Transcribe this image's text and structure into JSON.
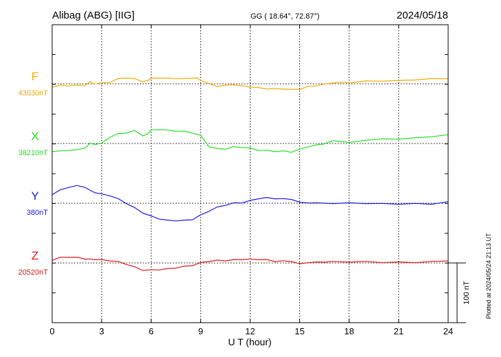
{
  "header": {
    "station": "Alibag (ABG)  [IIG]",
    "coords": "GG ( 18.64°,  72.87°)",
    "date": "2024/05/18"
  },
  "side_note": "Plotted at 2024/05/24 21:13 UT",
  "chart_data": {
    "type": "line",
    "xlabel": "U T (hour)",
    "xlim": [
      0,
      24
    ],
    "x_ticks": [
      "0",
      "3",
      "6",
      "9",
      "12",
      "15",
      "18",
      "21",
      "24"
    ],
    "scale_bar": {
      "label": "100 nT",
      "value_nT": 100
    },
    "unit": "nT",
    "series": [
      {
        "name": "F",
        "baseline_label": "43030nT",
        "baseline": 43030,
        "color": "#f2a900",
        "points": [
          [
            0,
            43025
          ],
          [
            0.5,
            43027
          ],
          [
            1,
            43027
          ],
          [
            1.5,
            43027
          ],
          [
            2,
            43028
          ],
          [
            2.3,
            43033
          ],
          [
            2.6,
            43030
          ],
          [
            3,
            43031
          ],
          [
            3.5,
            43033
          ],
          [
            4,
            43038
          ],
          [
            4.5,
            43040
          ],
          [
            5,
            43038
          ],
          [
            5.3,
            43036
          ],
          [
            5.5,
            43033
          ],
          [
            5.8,
            43036
          ],
          [
            6,
            43039
          ],
          [
            6.5,
            43040
          ],
          [
            7,
            43039
          ],
          [
            7.5,
            43039
          ],
          [
            8,
            43038
          ],
          [
            8.5,
            43040
          ],
          [
            8.8,
            43039
          ],
          [
            9,
            43036
          ],
          [
            9.5,
            43030
          ],
          [
            10,
            43026
          ],
          [
            10.5,
            43027
          ],
          [
            11,
            43029
          ],
          [
            11.5,
            43026
          ],
          [
            12,
            43025
          ],
          [
            12.5,
            43023
          ],
          [
            13,
            43022
          ],
          [
            13.5,
            43021
          ],
          [
            14,
            43022
          ],
          [
            14.5,
            43020
          ],
          [
            15,
            43021
          ],
          [
            15.5,
            43025
          ],
          [
            16,
            43027
          ],
          [
            16.5,
            43029
          ],
          [
            17,
            43032
          ],
          [
            17.5,
            43032
          ],
          [
            18,
            43032
          ],
          [
            19,
            43034
          ],
          [
            20,
            43035
          ],
          [
            21,
            43035
          ],
          [
            22,
            43037
          ],
          [
            23,
            43038
          ],
          [
            24,
            43039
          ]
        ]
      },
      {
        "name": "X",
        "baseline_label": "38210nT",
        "baseline": 38210,
        "color": "#22dd22",
        "points": [
          [
            0,
            38197
          ],
          [
            0.5,
            38197
          ],
          [
            1,
            38199
          ],
          [
            1.5,
            38199
          ],
          [
            2,
            38203
          ],
          [
            2.3,
            38210
          ],
          [
            2.6,
            38209
          ],
          [
            3,
            38210
          ],
          [
            3.5,
            38221
          ],
          [
            4,
            38226
          ],
          [
            4.5,
            38228
          ],
          [
            5,
            38231
          ],
          [
            5.3,
            38227
          ],
          [
            5.5,
            38222
          ],
          [
            5.8,
            38227
          ],
          [
            6,
            38232
          ],
          [
            6.5,
            38234
          ],
          [
            7,
            38232
          ],
          [
            7.5,
            38231
          ],
          [
            8,
            38230
          ],
          [
            8.5,
            38228
          ],
          [
            9,
            38223
          ],
          [
            9.5,
            38205
          ],
          [
            10,
            38201
          ],
          [
            10.5,
            38201
          ],
          [
            11,
            38204
          ],
          [
            11.5,
            38204
          ],
          [
            12,
            38202
          ],
          [
            12.5,
            38199
          ],
          [
            13,
            38198
          ],
          [
            13.5,
            38197
          ],
          [
            14,
            38197
          ],
          [
            14.5,
            38196
          ],
          [
            15,
            38200
          ],
          [
            15.5,
            38205
          ],
          [
            16,
            38207
          ],
          [
            16.5,
            38210
          ],
          [
            17,
            38214
          ],
          [
            17.5,
            38214
          ],
          [
            18,
            38211
          ],
          [
            19,
            38216
          ],
          [
            20,
            38217
          ],
          [
            21,
            38218
          ],
          [
            22,
            38219
          ],
          [
            23,
            38222
          ],
          [
            24,
            38224
          ]
        ]
      },
      {
        "name": "Y",
        "baseline_label": "380nT",
        "baseline": 380,
        "color": "#1a1add",
        "points": [
          [
            0,
            395
          ],
          [
            0.5,
            402
          ],
          [
            1,
            407
          ],
          [
            1.5,
            409
          ],
          [
            2,
            407
          ],
          [
            2.3,
            401
          ],
          [
            2.6,
            398
          ],
          [
            3,
            395
          ],
          [
            3.5,
            393
          ],
          [
            4,
            387
          ],
          [
            4.5,
            380
          ],
          [
            5,
            372
          ],
          [
            5.5,
            364
          ],
          [
            6,
            358
          ],
          [
            6.5,
            354
          ],
          [
            7,
            351
          ],
          [
            7.5,
            351
          ],
          [
            8,
            351
          ],
          [
            8.5,
            353
          ],
          [
            9,
            360
          ],
          [
            9.5,
            367
          ],
          [
            10,
            373
          ],
          [
            10.5,
            377
          ],
          [
            11,
            380
          ],
          [
            11.5,
            381
          ],
          [
            12,
            384
          ],
          [
            12.5,
            388
          ],
          [
            13,
            389
          ],
          [
            13.5,
            388
          ],
          [
            14,
            387
          ],
          [
            14.5,
            387
          ],
          [
            15,
            381
          ],
          [
            15.5,
            381
          ],
          [
            16,
            380
          ],
          [
            17,
            380
          ],
          [
            18,
            380
          ],
          [
            19,
            380
          ],
          [
            20,
            379
          ],
          [
            21,
            379
          ],
          [
            22,
            379
          ],
          [
            23,
            379
          ],
          [
            24,
            382
          ]
        ]
      },
      {
        "name": "Z",
        "baseline_label": "20520nT",
        "baseline": 20520,
        "color": "#e01515",
        "points": [
          [
            0,
            20525
          ],
          [
            0.5,
            20529
          ],
          [
            1,
            20530
          ],
          [
            1.5,
            20529
          ],
          [
            2,
            20527
          ],
          [
            2.3,
            20526
          ],
          [
            2.6,
            20526
          ],
          [
            3,
            20525
          ],
          [
            3.5,
            20524
          ],
          [
            4,
            20522
          ],
          [
            4.5,
            20518
          ],
          [
            5,
            20513
          ],
          [
            5.5,
            20508
          ],
          [
            6,
            20508
          ],
          [
            6.5,
            20509
          ],
          [
            7,
            20510
          ],
          [
            7.5,
            20512
          ],
          [
            8,
            20514
          ],
          [
            8.5,
            20516
          ],
          [
            9,
            20520
          ],
          [
            9.5,
            20523
          ],
          [
            10,
            20524
          ],
          [
            10.5,
            20524
          ],
          [
            11,
            20525
          ],
          [
            11.5,
            20526
          ],
          [
            12,
            20526
          ],
          [
            12.5,
            20526
          ],
          [
            13,
            20525
          ],
          [
            13.5,
            20523
          ],
          [
            14,
            20523
          ],
          [
            14.5,
            20523
          ],
          [
            15,
            20518
          ],
          [
            15.5,
            20521
          ],
          [
            16,
            20521
          ],
          [
            16.5,
            20522
          ],
          [
            17,
            20522
          ],
          [
            18,
            20522
          ],
          [
            19,
            20522
          ],
          [
            20,
            20521
          ],
          [
            21,
            20521
          ],
          [
            22,
            20521
          ],
          [
            23,
            20522
          ],
          [
            24,
            20524
          ]
        ]
      }
    ]
  }
}
